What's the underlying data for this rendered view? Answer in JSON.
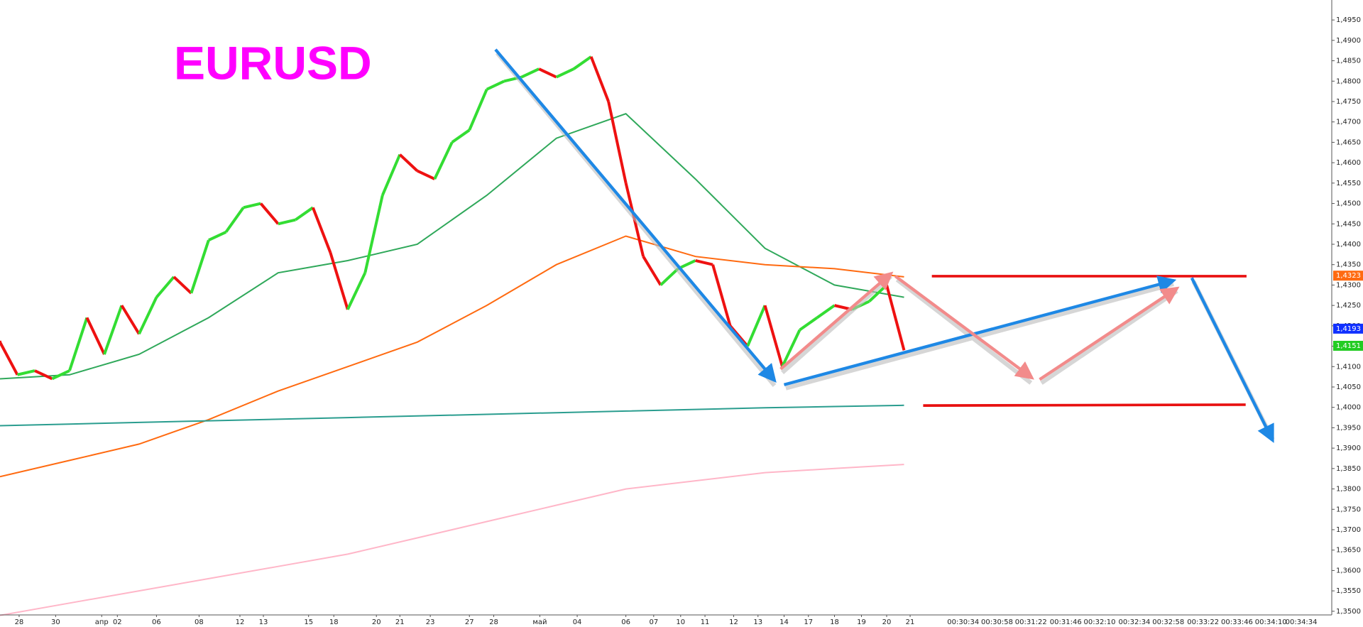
{
  "chart_data": {
    "type": "line",
    "title": "EURUSD",
    "x_tick_labels": [
      "28",
      "30",
      "апр",
      "02",
      "06",
      "08",
      "12",
      "13",
      "15",
      "18",
      "20",
      "21",
      "23",
      "27",
      "28",
      "май",
      "04",
      "06",
      "07",
      "10",
      "11",
      "12",
      "13",
      "14",
      "17",
      "18",
      "19",
      "20",
      "21"
    ],
    "time_labels": [
      "00:30:34",
      "00:30:58",
      "00:31:22",
      "00:31:46",
      "00:32:10",
      "00:32:34",
      "00:32:58",
      "00:33:22",
      "00:33:46",
      "00:34:10",
      "00:34:34"
    ],
    "ylim": [
      1.3491,
      1.4999
    ],
    "yticks": [
      {
        "value": 1.35,
        "label": "1,3500"
      },
      {
        "value": 1.355,
        "label": "1,3550"
      },
      {
        "value": 1.36,
        "label": "1,3600"
      },
      {
        "value": 1.365,
        "label": "1,3650"
      },
      {
        "value": 1.37,
        "label": "1,3700"
      },
      {
        "value": 1.375,
        "label": "1,3750"
      },
      {
        "value": 1.38,
        "label": "1,3800"
      },
      {
        "value": 1.385,
        "label": "1,3850"
      },
      {
        "value": 1.39,
        "label": "1,3900"
      },
      {
        "value": 1.395,
        "label": "1,3950"
      },
      {
        "value": 1.4,
        "label": "1,4000"
      },
      {
        "value": 1.405,
        "label": "1,4050"
      },
      {
        "value": 1.41,
        "label": "1,4100"
      },
      {
        "value": 1.415,
        "label": "1,4150"
      },
      {
        "value": 1.42,
        "label": "1,4200"
      },
      {
        "value": 1.425,
        "label": "1,4250"
      },
      {
        "value": 1.43,
        "label": "1,4300"
      },
      {
        "value": 1.435,
        "label": "1,4350"
      },
      {
        "value": 1.44,
        "label": "1,4400"
      },
      {
        "value": 1.445,
        "label": "1,4450"
      },
      {
        "value": 1.45,
        "label": "1,4500"
      },
      {
        "value": 1.455,
        "label": "1,4550"
      },
      {
        "value": 1.46,
        "label": "1,4600"
      },
      {
        "value": 1.465,
        "label": "1,4650"
      },
      {
        "value": 1.47,
        "label": "1,4700"
      },
      {
        "value": 1.475,
        "label": "1,4750"
      },
      {
        "value": 1.48,
        "label": "1,4800"
      },
      {
        "value": 1.485,
        "label": "1,4850"
      },
      {
        "value": 1.49,
        "label": "1,4900"
      },
      {
        "value": 1.495,
        "label": "1,4950"
      }
    ],
    "up_color": "#33dd33",
    "down_color": "#ee1111",
    "price": [
      1.416,
      1.408,
      1.409,
      1.407,
      1.409,
      1.422,
      1.413,
      1.425,
      1.418,
      1.427,
      1.432,
      1.428,
      1.441,
      1.443,
      1.449,
      1.45,
      1.445,
      1.446,
      1.449,
      1.438,
      1.424,
      1.433,
      1.452,
      1.462,
      1.458,
      1.456,
      1.465,
      1.468,
      1.478,
      1.48,
      1.481,
      1.483,
      1.481,
      1.483,
      1.486,
      1.475,
      1.455,
      1.437,
      1.43,
      1.434,
      1.436,
      1.435,
      1.42,
      1.415,
      1.425,
      1.41,
      1.419,
      1.422,
      1.425,
      1.424,
      1.426,
      1.43,
      1.414
    ],
    "series": [
      {
        "color": "#2fa85a",
        "values": [
          1.407,
          1.408,
          1.413,
          1.422,
          1.433,
          1.436,
          1.44,
          1.452,
          1.466,
          1.472,
          1.456,
          1.439,
          1.43,
          1.427
        ]
      },
      {
        "color": "#ff6a10",
        "values": [
          1.383,
          1.387,
          1.391,
          1.397,
          1.404,
          1.41,
          1.416,
          1.425,
          1.435,
          1.442,
          1.437,
          1.435,
          1.434,
          1.432
        ]
      },
      {
        "color": "#2a9d8f",
        "values": [
          1.3955,
          1.3959,
          1.3963,
          1.3967,
          1.3971,
          1.3975,
          1.3979,
          1.3983,
          1.3987,
          1.3991,
          1.3995,
          1.3999,
          1.4002,
          1.4005
        ]
      },
      {
        "color": "#ffb6c8",
        "values": [
          1.349,
          1.352,
          1.355,
          1.358,
          1.361,
          1.364,
          1.368,
          1.372,
          1.376,
          1.38,
          1.382,
          1.384,
          1.385,
          1.386
        ]
      }
    ],
    "price_tags": [
      {
        "value": 1.4323,
        "label": "1,4323",
        "color": "#ff6a10"
      },
      {
        "value": 1.4193,
        "label": "1,4193",
        "color": "#1030ff"
      },
      {
        "value": 1.4151,
        "label": "1,4151",
        "color": "#22cc22"
      }
    ]
  }
}
